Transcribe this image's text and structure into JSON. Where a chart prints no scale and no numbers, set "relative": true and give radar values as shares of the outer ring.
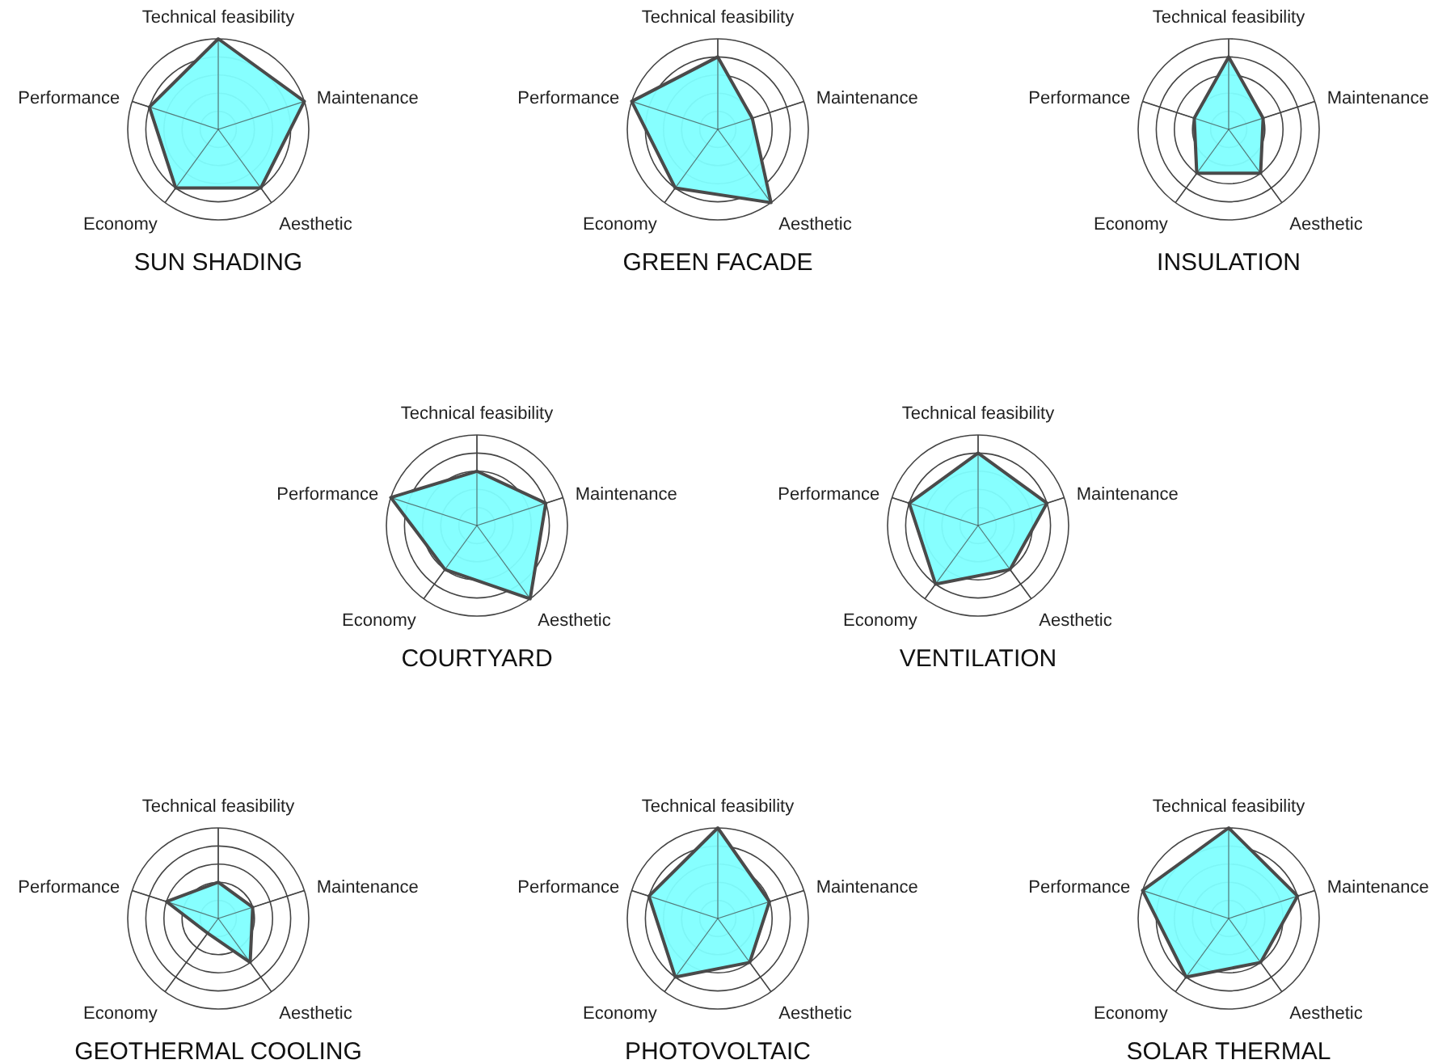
{
  "chart_data": [
    {
      "type": "radar",
      "title": "SUN SHADING",
      "relative": true,
      "grid": true,
      "categories": [
        "Technical feasibility",
        "Maintenance",
        "Aesthetic",
        "Economy",
        "Performance"
      ],
      "series": [
        {
          "color": "#80ffff",
          "values": [
            1.0,
            1.0,
            0.8,
            0.8,
            0.8
          ]
        }
      ]
    },
    {
      "type": "radar",
      "title": "GREEN FACADE",
      "relative": true,
      "grid": true,
      "categories": [
        "Technical feasibility",
        "Maintenance",
        "Aesthetic",
        "Economy",
        "Performance"
      ],
      "series": [
        {
          "color": "#80ffff",
          "values": [
            0.8,
            0.4,
            1.0,
            0.8,
            1.0
          ]
        }
      ]
    },
    {
      "type": "radar",
      "title": "INSULATION",
      "relative": true,
      "grid": true,
      "categories": [
        "Technical feasibility",
        "Maintenance",
        "Aesthetic",
        "Economy",
        "Performance"
      ],
      "series": [
        {
          "color": "#80ffff",
          "values": [
            0.8,
            0.4,
            0.6,
            0.6,
            0.4
          ]
        }
      ]
    },
    {
      "type": "radar",
      "title": "COURTYARD",
      "relative": true,
      "grid": true,
      "categories": [
        "Technical feasibility",
        "Maintenance",
        "Aesthetic",
        "Economy",
        "Performance"
      ],
      "series": [
        {
          "color": "#80ffff",
          "values": [
            0.6,
            0.8,
            1.0,
            0.6,
            1.0
          ]
        }
      ]
    },
    {
      "type": "radar",
      "title": "VENTILATION",
      "relative": true,
      "grid": true,
      "categories": [
        "Technical feasibility",
        "Maintenance",
        "Aesthetic",
        "Economy",
        "Performance"
      ],
      "series": [
        {
          "color": "#80ffff",
          "values": [
            0.8,
            0.8,
            0.6,
            0.8,
            0.8
          ]
        }
      ]
    },
    {
      "type": "radar",
      "title": "GEOTHERMAL COOLING",
      "relative": true,
      "grid": true,
      "categories": [
        "Technical feasibility",
        "Maintenance",
        "Aesthetic",
        "Economy",
        "Performance"
      ],
      "series": [
        {
          "color": "#80ffff",
          "values": [
            0.4,
            0.4,
            0.6,
            0.2,
            0.6
          ]
        }
      ]
    },
    {
      "type": "radar",
      "title": "PHOTOVOLTAIC",
      "relative": true,
      "grid": true,
      "categories": [
        "Technical feasibility",
        "Maintenance",
        "Aesthetic",
        "Economy",
        "Performance"
      ],
      "series": [
        {
          "color": "#80ffff",
          "values": [
            1.0,
            0.6,
            0.6,
            0.8,
            0.8
          ]
        }
      ]
    },
    {
      "type": "radar",
      "title": "SOLAR THERMAL",
      "relative": true,
      "grid": true,
      "categories": [
        "Technical feasibility",
        "Maintenance",
        "Aesthetic",
        "Economy",
        "Performance"
      ],
      "series": [
        {
          "color": "#80ffff",
          "values": [
            1.0,
            0.8,
            0.6,
            0.8,
            1.0
          ]
        }
      ]
    }
  ]
}
